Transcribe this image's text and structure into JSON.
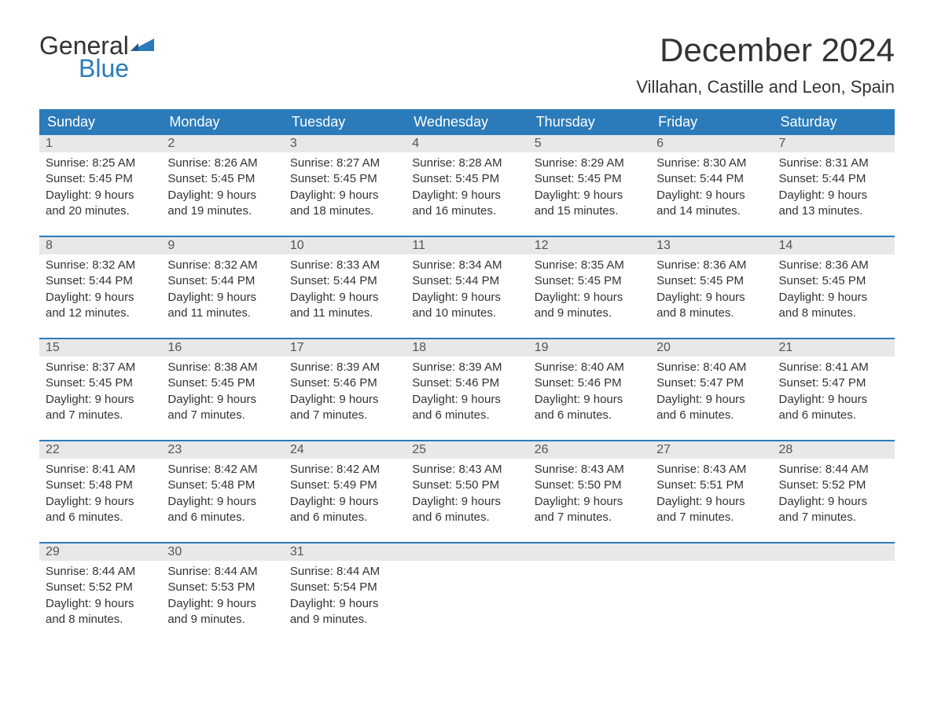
{
  "logo": {
    "text_general": "General",
    "text_blue": "Blue",
    "flag_color": "#2b7bba"
  },
  "header": {
    "month_title": "December 2024",
    "location": "Villahan, Castille and Leon, Spain"
  },
  "colors": {
    "header_bg": "#2b7bba",
    "header_text": "#ffffff",
    "day_number_bg": "#e8e8e8",
    "text_color": "#333333",
    "week_border": "#2b7bba"
  },
  "day_names": [
    "Sunday",
    "Monday",
    "Tuesday",
    "Wednesday",
    "Thursday",
    "Friday",
    "Saturday"
  ],
  "weeks": [
    [
      {
        "num": "1",
        "sunrise": "Sunrise: 8:25 AM",
        "sunset": "Sunset: 5:45 PM",
        "daylight1": "Daylight: 9 hours",
        "daylight2": "and 20 minutes."
      },
      {
        "num": "2",
        "sunrise": "Sunrise: 8:26 AM",
        "sunset": "Sunset: 5:45 PM",
        "daylight1": "Daylight: 9 hours",
        "daylight2": "and 19 minutes."
      },
      {
        "num": "3",
        "sunrise": "Sunrise: 8:27 AM",
        "sunset": "Sunset: 5:45 PM",
        "daylight1": "Daylight: 9 hours",
        "daylight2": "and 18 minutes."
      },
      {
        "num": "4",
        "sunrise": "Sunrise: 8:28 AM",
        "sunset": "Sunset: 5:45 PM",
        "daylight1": "Daylight: 9 hours",
        "daylight2": "and 16 minutes."
      },
      {
        "num": "5",
        "sunrise": "Sunrise: 8:29 AM",
        "sunset": "Sunset: 5:45 PM",
        "daylight1": "Daylight: 9 hours",
        "daylight2": "and 15 minutes."
      },
      {
        "num": "6",
        "sunrise": "Sunrise: 8:30 AM",
        "sunset": "Sunset: 5:44 PM",
        "daylight1": "Daylight: 9 hours",
        "daylight2": "and 14 minutes."
      },
      {
        "num": "7",
        "sunrise": "Sunrise: 8:31 AM",
        "sunset": "Sunset: 5:44 PM",
        "daylight1": "Daylight: 9 hours",
        "daylight2": "and 13 minutes."
      }
    ],
    [
      {
        "num": "8",
        "sunrise": "Sunrise: 8:32 AM",
        "sunset": "Sunset: 5:44 PM",
        "daylight1": "Daylight: 9 hours",
        "daylight2": "and 12 minutes."
      },
      {
        "num": "9",
        "sunrise": "Sunrise: 8:32 AM",
        "sunset": "Sunset: 5:44 PM",
        "daylight1": "Daylight: 9 hours",
        "daylight2": "and 11 minutes."
      },
      {
        "num": "10",
        "sunrise": "Sunrise: 8:33 AM",
        "sunset": "Sunset: 5:44 PM",
        "daylight1": "Daylight: 9 hours",
        "daylight2": "and 11 minutes."
      },
      {
        "num": "11",
        "sunrise": "Sunrise: 8:34 AM",
        "sunset": "Sunset: 5:44 PM",
        "daylight1": "Daylight: 9 hours",
        "daylight2": "and 10 minutes."
      },
      {
        "num": "12",
        "sunrise": "Sunrise: 8:35 AM",
        "sunset": "Sunset: 5:45 PM",
        "daylight1": "Daylight: 9 hours",
        "daylight2": "and 9 minutes."
      },
      {
        "num": "13",
        "sunrise": "Sunrise: 8:36 AM",
        "sunset": "Sunset: 5:45 PM",
        "daylight1": "Daylight: 9 hours",
        "daylight2": "and 8 minutes."
      },
      {
        "num": "14",
        "sunrise": "Sunrise: 8:36 AM",
        "sunset": "Sunset: 5:45 PM",
        "daylight1": "Daylight: 9 hours",
        "daylight2": "and 8 minutes."
      }
    ],
    [
      {
        "num": "15",
        "sunrise": "Sunrise: 8:37 AM",
        "sunset": "Sunset: 5:45 PM",
        "daylight1": "Daylight: 9 hours",
        "daylight2": "and 7 minutes."
      },
      {
        "num": "16",
        "sunrise": "Sunrise: 8:38 AM",
        "sunset": "Sunset: 5:45 PM",
        "daylight1": "Daylight: 9 hours",
        "daylight2": "and 7 minutes."
      },
      {
        "num": "17",
        "sunrise": "Sunrise: 8:39 AM",
        "sunset": "Sunset: 5:46 PM",
        "daylight1": "Daylight: 9 hours",
        "daylight2": "and 7 minutes."
      },
      {
        "num": "18",
        "sunrise": "Sunrise: 8:39 AM",
        "sunset": "Sunset: 5:46 PM",
        "daylight1": "Daylight: 9 hours",
        "daylight2": "and 6 minutes."
      },
      {
        "num": "19",
        "sunrise": "Sunrise: 8:40 AM",
        "sunset": "Sunset: 5:46 PM",
        "daylight1": "Daylight: 9 hours",
        "daylight2": "and 6 minutes."
      },
      {
        "num": "20",
        "sunrise": "Sunrise: 8:40 AM",
        "sunset": "Sunset: 5:47 PM",
        "daylight1": "Daylight: 9 hours",
        "daylight2": "and 6 minutes."
      },
      {
        "num": "21",
        "sunrise": "Sunrise: 8:41 AM",
        "sunset": "Sunset: 5:47 PM",
        "daylight1": "Daylight: 9 hours",
        "daylight2": "and 6 minutes."
      }
    ],
    [
      {
        "num": "22",
        "sunrise": "Sunrise: 8:41 AM",
        "sunset": "Sunset: 5:48 PM",
        "daylight1": "Daylight: 9 hours",
        "daylight2": "and 6 minutes."
      },
      {
        "num": "23",
        "sunrise": "Sunrise: 8:42 AM",
        "sunset": "Sunset: 5:48 PM",
        "daylight1": "Daylight: 9 hours",
        "daylight2": "and 6 minutes."
      },
      {
        "num": "24",
        "sunrise": "Sunrise: 8:42 AM",
        "sunset": "Sunset: 5:49 PM",
        "daylight1": "Daylight: 9 hours",
        "daylight2": "and 6 minutes."
      },
      {
        "num": "25",
        "sunrise": "Sunrise: 8:43 AM",
        "sunset": "Sunset: 5:50 PM",
        "daylight1": "Daylight: 9 hours",
        "daylight2": "and 6 minutes."
      },
      {
        "num": "26",
        "sunrise": "Sunrise: 8:43 AM",
        "sunset": "Sunset: 5:50 PM",
        "daylight1": "Daylight: 9 hours",
        "daylight2": "and 7 minutes."
      },
      {
        "num": "27",
        "sunrise": "Sunrise: 8:43 AM",
        "sunset": "Sunset: 5:51 PM",
        "daylight1": "Daylight: 9 hours",
        "daylight2": "and 7 minutes."
      },
      {
        "num": "28",
        "sunrise": "Sunrise: 8:44 AM",
        "sunset": "Sunset: 5:52 PM",
        "daylight1": "Daylight: 9 hours",
        "daylight2": "and 7 minutes."
      }
    ],
    [
      {
        "num": "29",
        "sunrise": "Sunrise: 8:44 AM",
        "sunset": "Sunset: 5:52 PM",
        "daylight1": "Daylight: 9 hours",
        "daylight2": "and 8 minutes."
      },
      {
        "num": "30",
        "sunrise": "Sunrise: 8:44 AM",
        "sunset": "Sunset: 5:53 PM",
        "daylight1": "Daylight: 9 hours",
        "daylight2": "and 9 minutes."
      },
      {
        "num": "31",
        "sunrise": "Sunrise: 8:44 AM",
        "sunset": "Sunset: 5:54 PM",
        "daylight1": "Daylight: 9 hours",
        "daylight2": "and 9 minutes."
      },
      null,
      null,
      null,
      null
    ]
  ]
}
